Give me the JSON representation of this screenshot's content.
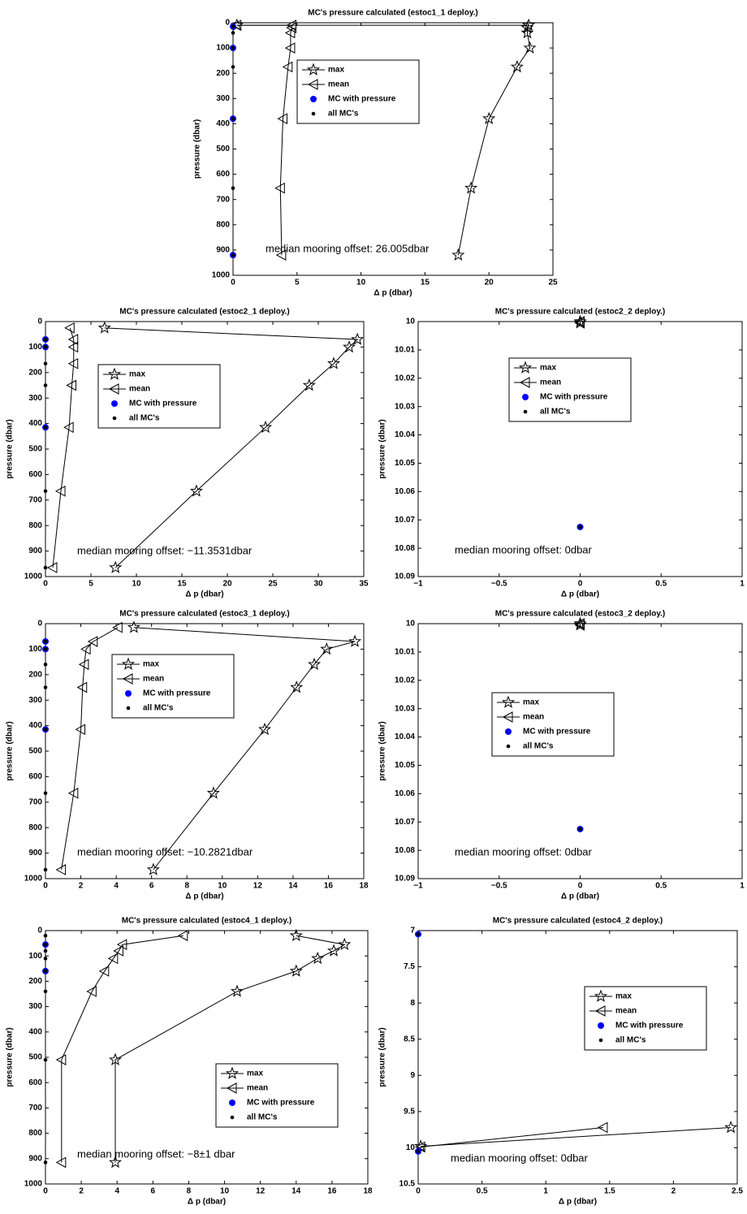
{
  "chart_data": [
    {
      "type": "line",
      "title": "MC's pressure calculated (estoc1_1 deploy.)",
      "xlabel": "Δ p (dbar)",
      "ylabel": "pressure (dbar)",
      "xlim": [
        0,
        25
      ],
      "xticks": [
        0,
        5,
        10,
        15,
        20,
        25
      ],
      "ylim": [
        0,
        1000
      ],
      "yticks": [
        0,
        100,
        200,
        300,
        400,
        500,
        600,
        700,
        800,
        900,
        1000
      ],
      "y_reversed": true,
      "annotation": "median mooring offset: 26.005dbar",
      "series": [
        {
          "name": "max",
          "color": "#000000",
          "marker": "star",
          "line": true,
          "x": [
            0.3,
            23.1,
            23,
            23,
            23.2,
            22.2,
            20,
            18.6,
            17.6
          ],
          "y": [
            10,
            10,
            20,
            40,
            100,
            175,
            380,
            655,
            920
          ]
        },
        {
          "name": "mean",
          "color": "#000000",
          "marker": "triangle-left",
          "line": true,
          "x": [
            0.3,
            4.6,
            4.6,
            4.5,
            4.5,
            4.3,
            3.9,
            3.7,
            3.8
          ],
          "y": [
            10,
            10,
            20,
            40,
            100,
            175,
            380,
            655,
            920
          ]
        },
        {
          "name": "MC with pressure",
          "color": "#0000ff",
          "marker": "circle",
          "line": false,
          "x": [
            0,
            0,
            0,
            0
          ],
          "y": [
            15,
            100,
            380,
            920
          ]
        },
        {
          "name": "all MC's",
          "color": "#000000",
          "marker": "dot",
          "line": false,
          "x": [
            0,
            0,
            0,
            0,
            0,
            0,
            0
          ],
          "y": [
            15,
            40,
            100,
            175,
            380,
            655,
            920
          ]
        }
      ]
    },
    {
      "type": "line",
      "title": "MC's pressure calculated (estoc2_1 deploy.)",
      "xlabel": "Δ p (dbar)",
      "ylabel": "pressure (dbar)",
      "xlim": [
        0,
        35
      ],
      "xticks": [
        0,
        5,
        10,
        15,
        20,
        25,
        30,
        35
      ],
      "ylim": [
        0,
        1000
      ],
      "yticks": [
        0,
        100,
        200,
        300,
        400,
        500,
        600,
        700,
        800,
        900,
        1000
      ],
      "y_reversed": true,
      "annotation": "median mooring offset: −11.3531dbar",
      "series": [
        {
          "name": "max",
          "color": "#000000",
          "marker": "star",
          "line": true,
          "x": [
            6.5,
            34.3,
            33.4,
            31.7,
            29,
            24.2,
            16.6,
            7.7
          ],
          "y": [
            25,
            70,
            100,
            165,
            250,
            415,
            665,
            965
          ]
        },
        {
          "name": "mean",
          "color": "#000000",
          "marker": "triangle-left",
          "line": true,
          "x": [
            2.7,
            3.1,
            3.1,
            3.1,
            2.9,
            2.6,
            1.7,
            0.8
          ],
          "y": [
            25,
            70,
            100,
            165,
            250,
            415,
            665,
            965
          ]
        },
        {
          "name": "MC with pressure",
          "color": "#0000ff",
          "marker": "circle",
          "line": false,
          "x": [
            0,
            0,
            0
          ],
          "y": [
            70,
            100,
            415
          ]
        },
        {
          "name": "all MC's",
          "color": "#000000",
          "marker": "dot",
          "line": false,
          "x": [
            0,
            0,
            0,
            0,
            0,
            0,
            0
          ],
          "y": [
            70,
            100,
            165,
            250,
            415,
            665,
            965
          ]
        }
      ]
    },
    {
      "type": "line",
      "title": "MC's pressure calculated (estoc2_2 deploy.)",
      "xlabel": "Δ p (dbar)",
      "ylabel": "pressure (dbar)",
      "xlim": [
        -1,
        1
      ],
      "xticks": [
        {
          "value": -1,
          "label": "−1"
        },
        {
          "value": -0.5,
          "label": "−0.5"
        },
        0,
        0.5,
        1
      ],
      "ylim": [
        10,
        10.09
      ],
      "yticks": [
        10,
        10.01,
        10.02,
        10.03,
        10.04,
        10.05,
        10.06,
        10.07,
        10.08,
        10.09
      ],
      "y_reversed": true,
      "annotation": "median mooring offset: 0dbar",
      "series": [
        {
          "name": "max",
          "color": "#000000",
          "marker": "star",
          "line": true,
          "x": [
            0,
            0
          ],
          "y": [
            10,
            10.0005
          ]
        },
        {
          "name": "mean",
          "color": "#000000",
          "marker": "triangle-left",
          "line": true,
          "x": [
            0,
            0
          ],
          "y": [
            10,
            10.0005
          ]
        },
        {
          "name": "MC with pressure",
          "color": "#0000ff",
          "marker": "circle",
          "line": false,
          "x": [
            0
          ],
          "y": [
            10.0725
          ]
        },
        {
          "name": "all MC's",
          "color": "#000000",
          "marker": "dot",
          "line": false,
          "x": [
            0
          ],
          "y": [
            10.0725
          ]
        }
      ]
    },
    {
      "type": "line",
      "title": "MC's pressure calculated (estoc3_1 deploy.)",
      "xlabel": "Δ p (dbar)",
      "ylabel": "pressure (dbar)",
      "xlim": [
        0,
        18
      ],
      "xticks": [
        0,
        2,
        4,
        6,
        8,
        10,
        12,
        14,
        16,
        18
      ],
      "ylim": [
        0,
        1000
      ],
      "yticks": [
        0,
        100,
        200,
        300,
        400,
        500,
        600,
        700,
        800,
        900,
        1000
      ],
      "y_reversed": true,
      "annotation": "median mooring offset: −10.2821dbar",
      "series": [
        {
          "name": "max",
          "color": "#000000",
          "marker": "star",
          "line": true,
          "x": [
            5,
            17.5,
            15.9,
            15.2,
            14.2,
            12.4,
            9.5,
            6.1
          ],
          "y": [
            15,
            70,
            100,
            160,
            250,
            415,
            665,
            965
          ]
        },
        {
          "name": "mean",
          "color": "#000000",
          "marker": "triangle-left",
          "line": true,
          "x": [
            4.1,
            2.7,
            2.3,
            2.2,
            2.1,
            2,
            1.6,
            0.9
          ],
          "y": [
            15,
            70,
            100,
            160,
            250,
            415,
            665,
            965
          ]
        },
        {
          "name": "MC with pressure",
          "color": "#0000ff",
          "marker": "circle",
          "line": false,
          "x": [
            0,
            0,
            0
          ],
          "y": [
            70,
            100,
            415
          ]
        },
        {
          "name": "all MC's",
          "color": "#000000",
          "marker": "dot",
          "line": false,
          "x": [
            0,
            0,
            0,
            0,
            0,
            0,
            0
          ],
          "y": [
            70,
            100,
            160,
            250,
            415,
            665,
            965
          ]
        }
      ]
    },
    {
      "type": "line",
      "title": "MC's pressure calculated (estoc3_2 deploy.)",
      "xlabel": "Δ p (dbar)",
      "ylabel": "pressure (dbar)",
      "xlim": [
        -1,
        1
      ],
      "xticks": [
        {
          "value": -1,
          "label": "−1"
        },
        {
          "value": -0.5,
          "label": "−0.5"
        },
        0,
        0.5,
        1
      ],
      "ylim": [
        10,
        10.09
      ],
      "yticks": [
        10,
        10.01,
        10.02,
        10.03,
        10.04,
        10.05,
        10.06,
        10.07,
        10.08,
        10.09
      ],
      "y_reversed": true,
      "annotation": "median mooring offset: 0dbar",
      "series": [
        {
          "name": "max",
          "color": "#000000",
          "marker": "star",
          "line": true,
          "x": [
            0,
            0
          ],
          "y": [
            10,
            10.0005
          ]
        },
        {
          "name": "mean",
          "color": "#000000",
          "marker": "triangle-left",
          "line": true,
          "x": [
            0,
            0
          ],
          "y": [
            10,
            10.0005
          ]
        },
        {
          "name": "MC with pressure",
          "color": "#0000ff",
          "marker": "circle",
          "line": false,
          "x": [
            0
          ],
          "y": [
            10.0725
          ]
        },
        {
          "name": "all MC's",
          "color": "#000000",
          "marker": "dot",
          "line": false,
          "x": [
            0
          ],
          "y": [
            10.0725
          ]
        }
      ]
    },
    {
      "type": "line",
      "title": "MC's pressure calculated (estoc4_1 deploy.)",
      "xlabel": "Δ p (dbar)",
      "ylabel": "pressure (dbar)",
      "xlim": [
        0,
        18
      ],
      "xticks": [
        0,
        2,
        4,
        6,
        8,
        10,
        12,
        14,
        16,
        18
      ],
      "ylim": [
        0,
        1000
      ],
      "yticks": [
        0,
        100,
        200,
        300,
        400,
        500,
        600,
        700,
        800,
        900,
        1000
      ],
      "y_reversed": true,
      "annotation": "median mooring offset: −8±1 dbar",
      "series": [
        {
          "name": "max",
          "color": "#000000",
          "marker": "star",
          "line": true,
          "x": [
            14,
            16.7,
            16.1,
            15.2,
            14,
            10.7,
            3.9,
            3.9
          ],
          "y": [
            20,
            55,
            80,
            110,
            160,
            240,
            510,
            915
          ]
        },
        {
          "name": "mean",
          "color": "#000000",
          "marker": "triangle-left",
          "line": true,
          "x": [
            7.7,
            4.3,
            4.1,
            3.8,
            3.3,
            2.6,
            0.9,
            0.9
          ],
          "y": [
            20,
            55,
            80,
            110,
            160,
            240,
            510,
            915
          ]
        },
        {
          "name": "MC with pressure",
          "color": "#0000ff",
          "marker": "circle",
          "line": false,
          "x": [
            0,
            0
          ],
          "y": [
            55,
            160
          ]
        },
        {
          "name": "all MC's",
          "color": "#000000",
          "marker": "dot",
          "line": false,
          "x": [
            0,
            0,
            0,
            0,
            0,
            0,
            0,
            0
          ],
          "y": [
            20,
            55,
            80,
            110,
            160,
            240,
            510,
            915
          ]
        }
      ]
    },
    {
      "type": "line",
      "title": "MC's pressure calculated (estoc4_2 deploy.)",
      "xlabel": "Δ p (dbar)",
      "ylabel": "pressure (dbar)",
      "xlim": [
        0,
        2.5
      ],
      "xticks": [
        0,
        0.5,
        1,
        1.5,
        2,
        2.5
      ],
      "ylim": [
        7,
        10.5
      ],
      "yticks": [
        7,
        7.5,
        8,
        8.5,
        9,
        9.5,
        10,
        10.5
      ],
      "y_reversed": true,
      "annotation": "median mooring offset: 0dbar",
      "series": [
        {
          "name": "max",
          "color": "#000000",
          "marker": "star",
          "line": true,
          "x": [
            0.02,
            2.45
          ],
          "y": [
            9.98,
            9.72
          ]
        },
        {
          "name": "mean",
          "color": "#000000",
          "marker": "triangle-left",
          "line": true,
          "x": [
            0.02,
            1.45
          ],
          "y": [
            9.99,
            9.72
          ]
        },
        {
          "name": "MC with pressure",
          "color": "#0000ff",
          "marker": "circle",
          "line": false,
          "x": [
            0,
            0
          ],
          "y": [
            7.05,
            10.05
          ]
        },
        {
          "name": "all MC's",
          "color": "#000000",
          "marker": "dot",
          "line": false,
          "x": [
            0,
            0
          ],
          "y": [
            7.05,
            10.05
          ]
        }
      ]
    }
  ]
}
